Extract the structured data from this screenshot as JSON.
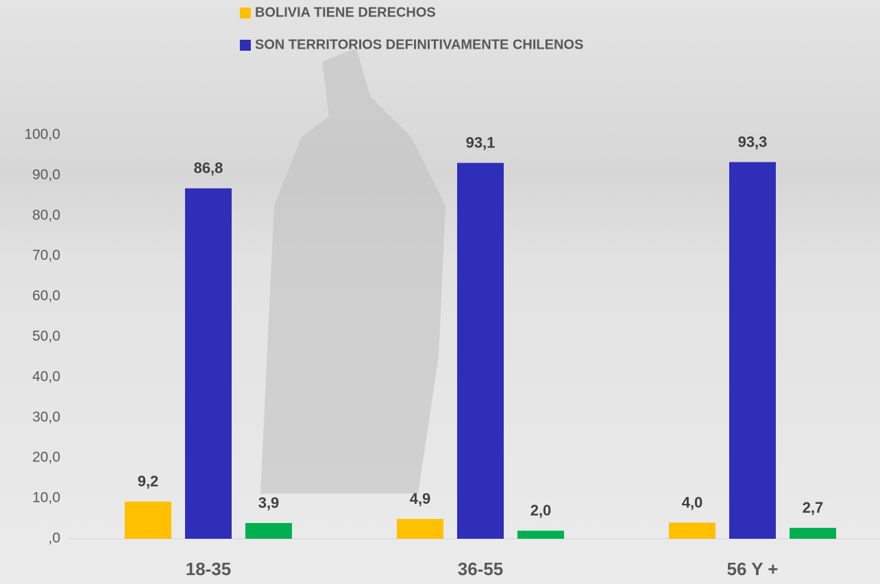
{
  "chart_data": {
    "type": "bar",
    "categories": [
      "18-35",
      "36-55",
      "56 Y +"
    ],
    "series": [
      {
        "name": "BOLIVIA TIENE DERECHOS",
        "color": "#ffc000",
        "values": [
          9.2,
          4.9,
          4.0
        ],
        "value_labels": [
          "9,2",
          "4,9",
          "4,0"
        ]
      },
      {
        "name": "SON TERRITORIOS DEFINITIVAMENTE CHILENOS",
        "color": "#2e2eb8",
        "values": [
          86.8,
          93.1,
          93.3
        ],
        "value_labels": [
          "86,8",
          "93,1",
          "93,3"
        ]
      },
      {
        "color": "#00b050",
        "values": [
          3.9,
          2.0,
          2.7
        ],
        "value_labels": [
          "3,9",
          "2,0",
          "2,7"
        ]
      }
    ],
    "ylim": [
      0,
      100
    ],
    "yticks": [
      {
        "value": 0,
        "label": ",0"
      },
      {
        "value": 10,
        "label": "10,0"
      },
      {
        "value": 20,
        "label": "20,0"
      },
      {
        "value": 30,
        "label": "30,0"
      },
      {
        "value": 40,
        "label": "40,0"
      },
      {
        "value": 50,
        "label": "50,0"
      },
      {
        "value": 60,
        "label": "60,0"
      },
      {
        "value": 70,
        "label": "70,0"
      },
      {
        "value": 80,
        "label": "80,0"
      },
      {
        "value": 90,
        "label": "90,0"
      },
      {
        "value": 100,
        "label": "100,0"
      }
    ],
    "grid": false
  }
}
